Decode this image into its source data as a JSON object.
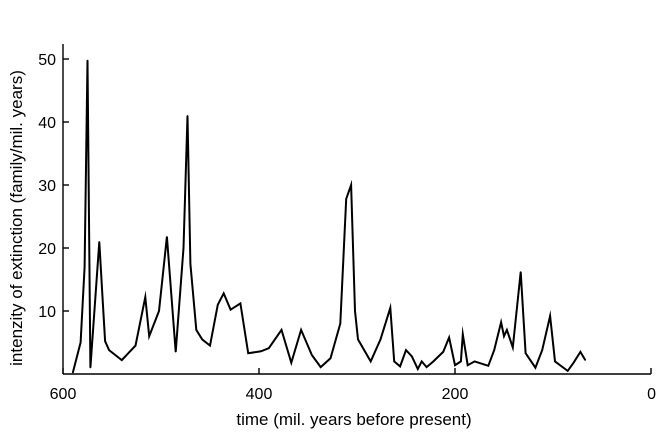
{
  "chart_data": {
    "type": "line",
    "title": "",
    "xlabel": "time (mil.  years before present)",
    "ylabel": "intenzity of extinction (family/mil. years)",
    "xlim": [
      600,
      0
    ],
    "ylim": [
      0,
      50
    ],
    "x_ticks": [
      600,
      400,
      200,
      0
    ],
    "x_tick_labels": [
      "600",
      "400",
      "200",
      "0"
    ],
    "y_ticks": [
      10,
      20,
      30,
      40,
      50
    ],
    "y_tick_labels": [
      "10",
      "20",
      "30",
      "40",
      "50"
    ],
    "grid": false,
    "legend": "none",
    "series": [
      {
        "color": "#000000",
        "points": [
          [
            590,
            0.2
          ],
          [
            582,
            5
          ],
          [
            578,
            17
          ],
          [
            575,
            49.8
          ],
          [
            572,
            1
          ],
          [
            567,
            12
          ],
          [
            563,
            21
          ],
          [
            560,
            13
          ],
          [
            557,
            5.2
          ],
          [
            553,
            3.8
          ],
          [
            540,
            2.2
          ],
          [
            526,
            4.5
          ],
          [
            516,
            12.2
          ],
          [
            512,
            6
          ],
          [
            502,
            10
          ],
          [
            494,
            21.8
          ],
          [
            485,
            3.5
          ],
          [
            477,
            20
          ],
          [
            473,
            41
          ],
          [
            470,
            17.5
          ],
          [
            464,
            7
          ],
          [
            458,
            5.5
          ],
          [
            450,
            4.5
          ],
          [
            442,
            11
          ],
          [
            436,
            12.8
          ],
          [
            429,
            10.2
          ],
          [
            419,
            11.2
          ],
          [
            411,
            3.3
          ],
          [
            398,
            3.6
          ],
          [
            390,
            4.1
          ],
          [
            377,
            7
          ],
          [
            367,
            1.8
          ],
          [
            357,
            7
          ],
          [
            346,
            3
          ],
          [
            337,
            1.1
          ],
          [
            327,
            2.5
          ],
          [
            317,
            8
          ],
          [
            311,
            27.8
          ],
          [
            306,
            30
          ],
          [
            302,
            10
          ],
          [
            299,
            5.5
          ],
          [
            286,
            2
          ],
          [
            276,
            5.5
          ],
          [
            266,
            10.5
          ],
          [
            262,
            2
          ],
          [
            256,
            1.2
          ],
          [
            250,
            3.8
          ],
          [
            244,
            2.8
          ],
          [
            238,
            0.8
          ],
          [
            234,
            2
          ],
          [
            229,
            1.1
          ],
          [
            222,
            2
          ],
          [
            212,
            3.5
          ],
          [
            206,
            5.8
          ],
          [
            200,
            1.4
          ],
          [
            194,
            2
          ],
          [
            192,
            6.3
          ],
          [
            187,
            1.4
          ],
          [
            180,
            2
          ],
          [
            166,
            1.3
          ],
          [
            160,
            3.8
          ],
          [
            153,
            8.2
          ],
          [
            150,
            6
          ],
          [
            147,
            7
          ],
          [
            141,
            4.2
          ],
          [
            133,
            16.2
          ],
          [
            128,
            3.3
          ],
          [
            118,
            1
          ],
          [
            111,
            3.8
          ],
          [
            103,
            9.2
          ],
          [
            98,
            2
          ],
          [
            85,
            0.5
          ],
          [
            79,
            1.8
          ],
          [
            72,
            3.5
          ],
          [
            67,
            2.2
          ]
        ]
      }
    ]
  }
}
